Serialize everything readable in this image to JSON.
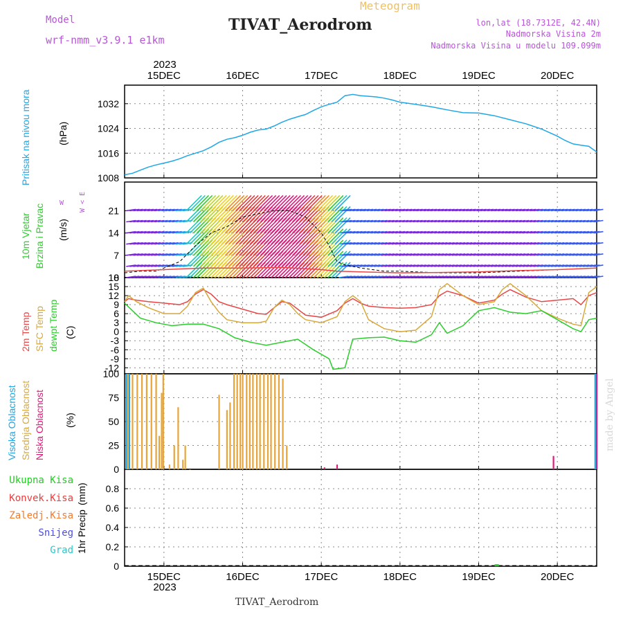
{
  "header": {
    "model_label": "Model",
    "model_name": "wrf-nmm_v3.9.1 e1km",
    "title": "TIVAT_Aerodrom",
    "subtitle": "Meteogram",
    "lonlat": "lon,lat (18.7312E, 42.4N)",
    "elev": "Nadmorska Visina 2m",
    "model_elev": "Nadmorska Visina u modelu 109.099m",
    "footer": "TIVAT_Aerodrom",
    "credit": "made by Angel",
    "year_top": "2023",
    "year_bottom": "2023"
  },
  "colors": {
    "pressure": "#1ea7e6",
    "temp2m": "#e84646",
    "sfc": "#d8a83a",
    "dewpt": "#2ccd2c",
    "high_cloud": "#1ea7e6",
    "mid_cloud": "#e6a43a",
    "low_cloud": "#e0197d",
    "rain": "#22cc22",
    "conv": "#ef3b3b",
    "frz": "#f47a2c",
    "snow": "#4b4be8",
    "hail": "#22cccc",
    "header_purple": "#b855d8"
  },
  "days": [
    "15DEC",
    "16DEC",
    "17DEC",
    "18DEC",
    "19DEC",
    "20DEC"
  ],
  "panels": {
    "pressure": {
      "title": "Pritisak na nivou mora",
      "unit": "(hPa)"
    },
    "wind": {
      "title1": "10m Vjetar",
      "title2": "Brzina i Pravac",
      "unit": "(m/s)",
      "rose": "W < E"
    },
    "temp": {
      "title1": "2m Temp",
      "title2": "SFC Temp",
      "title3": "dewpt Temp",
      "unit": "(C)"
    },
    "cloud": {
      "title1": "Visoka Oblacnost",
      "title2": "Srednja Oblacnost",
      "title3": "Niska Oblacnost",
      "unit": "(%)"
    },
    "precip": {
      "title": "1hr Precip",
      "unit": "(mm)",
      "legend": [
        "Ukupna Kisa",
        "Konvek.Kisa",
        "Zaledj.Kisa",
        "Snijeg",
        "Grad"
      ]
    }
  },
  "chart_data": [
    {
      "type": "line",
      "name": "pressure",
      "xlabel": "",
      "ylabel": "(hPa)",
      "xlim": [
        -0.5,
        5.5
      ],
      "ylim": [
        1008,
        1038
      ],
      "yticks": [
        "1008",
        "1016",
        "1024",
        "1032"
      ],
      "xticks": [
        "15DEC",
        "16DEC",
        "17DEC",
        "18DEC",
        "19DEC",
        "20DEC"
      ],
      "series": [
        {
          "name": "Pritisak na nivou mora",
          "x": [
            -0.5,
            -0.4,
            -0.3,
            -0.2,
            -0.1,
            0.0,
            0.1,
            0.2,
            0.3,
            0.4,
            0.5,
            0.6,
            0.7,
            0.8,
            0.9,
            1.0,
            1.1,
            1.2,
            1.3,
            1.4,
            1.5,
            1.6,
            1.7,
            1.8,
            1.9,
            2.0,
            2.1,
            2.2,
            2.3,
            2.4,
            2.5,
            2.6,
            2.7,
            2.8,
            2.9,
            3.0,
            3.2,
            3.4,
            3.6,
            3.8,
            4.0,
            4.2,
            4.4,
            4.6,
            4.8,
            5.0,
            5.1,
            5.2,
            5.3,
            5.4,
            5.5
          ],
          "y": [
            1009,
            1009.5,
            1010.5,
            1011.5,
            1012.2,
            1012.8,
            1013.4,
            1014.2,
            1015.2,
            1016,
            1016.8,
            1018,
            1019.5,
            1020.5,
            1021,
            1021.8,
            1022.8,
            1023.5,
            1023.8,
            1024.8,
            1026,
            1027,
            1027.8,
            1028.5,
            1029.8,
            1031,
            1031.8,
            1032.5,
            1034.6,
            1035,
            1034.6,
            1034.4,
            1034.2,
            1033.8,
            1033.2,
            1032.5,
            1031.8,
            1031,
            1030,
            1029.1,
            1029,
            1028.1,
            1026.8,
            1025.5,
            1023.8,
            1021.5,
            1020.1,
            1019,
            1018.6,
            1018.2,
            1016.4
          ]
        }
      ]
    },
    {
      "type": "line",
      "name": "wind",
      "xlabel": "",
      "ylabel": "(m/s)",
      "xlim": [
        -0.5,
        5.5
      ],
      "ylim": [
        0,
        30
      ],
      "yticks": [
        "0",
        "7",
        "14",
        "21"
      ],
      "xticks": [
        "15DEC",
        "16DEC",
        "17DEC",
        "18DEC",
        "19DEC",
        "20DEC"
      ],
      "series": [
        {
          "name": "Brzina i Pravac",
          "x": [
            -0.5,
            -0.3,
            -0.1,
            0.0,
            0.2,
            0.4,
            0.6,
            0.8,
            1.0,
            1.2,
            1.4,
            1.6,
            1.8,
            2.0,
            2.1,
            2.2,
            2.3,
            2.5,
            2.8,
            3.0,
            3.5,
            4.0,
            4.5,
            5.0,
            5.5
          ],
          "y": [
            1.5,
            2,
            2,
            3,
            5,
            10,
            14,
            16,
            19,
            20,
            21,
            21,
            19,
            14,
            10,
            5,
            4,
            3,
            2,
            2,
            1.5,
            1.5,
            2,
            2.5,
            3
          ]
        },
        {
          "name": "",
          "x": [
            -0.5,
            0.0,
            0.5,
            1.0,
            1.5,
            2.0,
            2.2,
            2.5,
            3.0,
            3.5,
            4.0,
            4.5,
            5.0,
            5.5
          ],
          "y": [
            2,
            2.5,
            3,
            3,
            3.2,
            2.5,
            2,
            1.8,
            1.5,
            1.6,
            1.8,
            2.2,
            2.5,
            3
          ]
        }
      ]
    },
    {
      "type": "line",
      "name": "temperature",
      "xlabel": "",
      "ylabel": "(C)",
      "xlim": [
        -0.5,
        5.5
      ],
      "ylim": [
        -14,
        18
      ],
      "yticks": [
        "-12",
        "-9",
        "-6",
        "-3",
        "0",
        "3",
        "6",
        "9",
        "12",
        "15",
        "18"
      ],
      "xticks": [
        "15DEC",
        "16DEC",
        "17DEC",
        "18DEC",
        "19DEC",
        "20DEC"
      ],
      "series": [
        {
          "name": "2m Temp",
          "x": [
            -0.5,
            -0.45,
            -0.35,
            -0.2,
            0.0,
            0.2,
            0.3,
            0.4,
            0.5,
            0.6,
            0.7,
            0.8,
            1.0,
            1.2,
            1.3,
            1.4,
            1.5,
            1.6,
            1.7,
            1.8,
            2.0,
            2.2,
            2.3,
            2.4,
            2.5,
            2.6,
            2.8,
            3.0,
            3.2,
            3.4,
            3.5,
            3.6,
            3.8,
            4.0,
            4.2,
            4.3,
            4.4,
            4.6,
            4.8,
            5.0,
            5.2,
            5.3,
            5.4,
            5.5
          ],
          "y": [
            10,
            11,
            10.5,
            10,
            9.5,
            9,
            10,
            12.5,
            14,
            12.5,
            10,
            9,
            7.5,
            6,
            5.8,
            8,
            10,
            9.5,
            7.5,
            5.5,
            4.8,
            7,
            9.5,
            11,
            9.5,
            8.5,
            8,
            7.8,
            8,
            9,
            12,
            13.5,
            12,
            9.5,
            10.5,
            12.5,
            14,
            11.5,
            10,
            10.5,
            11,
            9,
            12,
            13
          ]
        },
        {
          "name": "SFC Temp",
          "x": [
            -0.5,
            -0.45,
            -0.35,
            -0.2,
            0.0,
            0.2,
            0.3,
            0.4,
            0.5,
            0.6,
            0.7,
            0.8,
            1.0,
            1.2,
            1.3,
            1.4,
            1.5,
            1.6,
            1.7,
            1.8,
            2.0,
            2.2,
            2.3,
            2.4,
            2.5,
            2.6,
            2.8,
            3.0,
            3.2,
            3.4,
            3.5,
            3.6,
            3.8,
            4.0,
            4.2,
            4.3,
            4.4,
            4.6,
            4.8,
            5.0,
            5.2,
            5.3,
            5.4,
            5.5
          ],
          "y": [
            10,
            12,
            10,
            8,
            6,
            6,
            8.5,
            13,
            14.5,
            10,
            6.5,
            4,
            3,
            3,
            3.5,
            8,
            10.5,
            9,
            6,
            4,
            3,
            5,
            10,
            12,
            10,
            4,
            1,
            0,
            0.5,
            5,
            14,
            16,
            12,
            9,
            10,
            14,
            16,
            12,
            7,
            4.5,
            2.5,
            2,
            13,
            15
          ]
        },
        {
          "name": "dewpt Temp",
          "x": [
            -0.5,
            -0.4,
            -0.3,
            -0.1,
            0.1,
            0.3,
            0.5,
            0.7,
            0.9,
            1.1,
            1.3,
            1.5,
            1.7,
            1.9,
            2.0,
            2.1,
            2.15,
            2.3,
            2.4,
            2.6,
            2.8,
            3.0,
            3.2,
            3.4,
            3.5,
            3.6,
            3.8,
            4.0,
            4.2,
            4.4,
            4.6,
            4.8,
            5.0,
            5.2,
            5.3,
            5.4,
            5.5
          ],
          "y": [
            9.5,
            7,
            4.5,
            3,
            2,
            2.5,
            2.5,
            1,
            -2,
            -3.5,
            -4.5,
            -3.5,
            -2.5,
            -6,
            -7.5,
            -9,
            -12.5,
            -12,
            -2.5,
            -2,
            -1.8,
            -3,
            -3.5,
            -1,
            3,
            -0.5,
            2,
            7,
            8,
            6.5,
            6,
            7,
            4,
            1,
            0,
            4,
            4.5
          ]
        }
      ]
    },
    {
      "type": "bar",
      "name": "cloud",
      "xlabel": "",
      "ylabel": "(%)",
      "xlim": [
        -0.5,
        5.5
      ],
      "ylim": [
        0,
        100
      ],
      "yticks": [
        "0",
        "25",
        "50",
        "75",
        "100"
      ],
      "xticks": [
        "15DEC",
        "16DEC",
        "17DEC",
        "18DEC",
        "19DEC",
        "20DEC"
      ],
      "series": [
        {
          "name": "Srednja Oblacnost",
          "x": [
            -0.46,
            -0.4,
            -0.34,
            -0.28,
            -0.22,
            -0.16,
            -0.1,
            -0.06,
            -0.03,
            -0.01,
            0.07,
            0.13,
            0.18,
            0.24,
            0.27,
            0.33,
            0.7,
            0.8,
            0.84,
            0.89,
            0.93,
            0.97,
            1.0,
            1.05,
            1.09,
            1.13,
            1.18,
            1.22,
            1.27,
            1.32,
            1.36,
            1.41,
            1.46,
            1.51,
            1.56
          ],
          "y": [
            100,
            100,
            100,
            100,
            100,
            100,
            100,
            35,
            80,
            100,
            5,
            25,
            65,
            10,
            25,
            0,
            78,
            62,
            70,
            100,
            100,
            100,
            100,
            100,
            100,
            100,
            100,
            100,
            100,
            100,
            100,
            100,
            100,
            95,
            25
          ]
        },
        {
          "name": "Visoka Oblacnost",
          "x": [
            -0.48,
            -0.44,
            5.48
          ],
          "y": [
            100,
            100,
            100
          ]
        },
        {
          "name": "Niska Oblacnost",
          "x": [
            2.04,
            2.2,
            4.95,
            5.5
          ],
          "y": [
            2,
            5,
            14,
            100
          ]
        }
      ]
    },
    {
      "type": "bar",
      "name": "precip",
      "xlabel": "",
      "ylabel": "1hr Precip (mm)",
      "xlim": [
        -0.5,
        5.5
      ],
      "ylim": [
        0,
        1
      ],
      "yticks": [
        "0",
        "0.2",
        "0.4",
        "0.6",
        "0.8"
      ],
      "xticks": [
        "15DEC",
        "16DEC",
        "17DEC",
        "18DEC",
        "19DEC",
        "20DEC"
      ],
      "series": [
        {
          "name": "Ukupna Kisa",
          "x": [
            4.22,
            4.24
          ],
          "y": [
            0.02,
            0.02
          ]
        }
      ]
    }
  ]
}
